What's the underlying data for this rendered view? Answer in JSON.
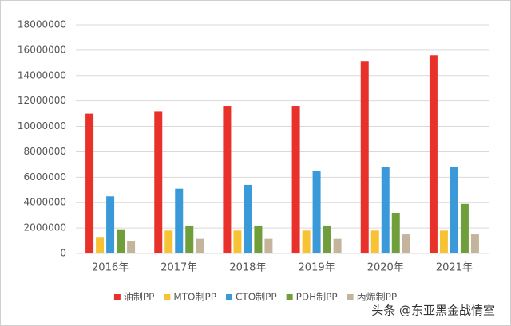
{
  "chart_data": {
    "type": "bar",
    "categories": [
      "2016年",
      "2017年",
      "2018年",
      "2019年",
      "2020年",
      "2021年"
    ],
    "series": [
      {
        "name": "油制PP",
        "color": "#e8312a",
        "values": [
          11000000,
          11200000,
          11600000,
          11600000,
          15100000,
          15600000
        ]
      },
      {
        "name": "MTO制PP",
        "color": "#f7c234",
        "values": [
          1300000,
          1800000,
          1800000,
          1800000,
          1800000,
          1800000
        ]
      },
      {
        "name": "CTO制PP",
        "color": "#3a9ad9",
        "values": [
          4500000,
          5100000,
          5400000,
          6500000,
          6800000,
          6800000
        ]
      },
      {
        "name": "PDH制PP",
        "color": "#6f9e3a",
        "values": [
          1900000,
          2200000,
          2200000,
          2200000,
          3200000,
          3900000
        ]
      },
      {
        "name": "丙烯制PP",
        "color": "#c4b49b",
        "values": [
          1000000,
          1150000,
          1150000,
          1150000,
          1500000,
          1500000
        ]
      }
    ],
    "ylim": [
      0,
      18000000
    ],
    "yticks": [
      0,
      2000000,
      4000000,
      6000000,
      8000000,
      10000000,
      12000000,
      14000000,
      16000000,
      18000000
    ],
    "grid": true,
    "legend": "bottom",
    "watermark": "头条 @东亚黑金战情室"
  }
}
